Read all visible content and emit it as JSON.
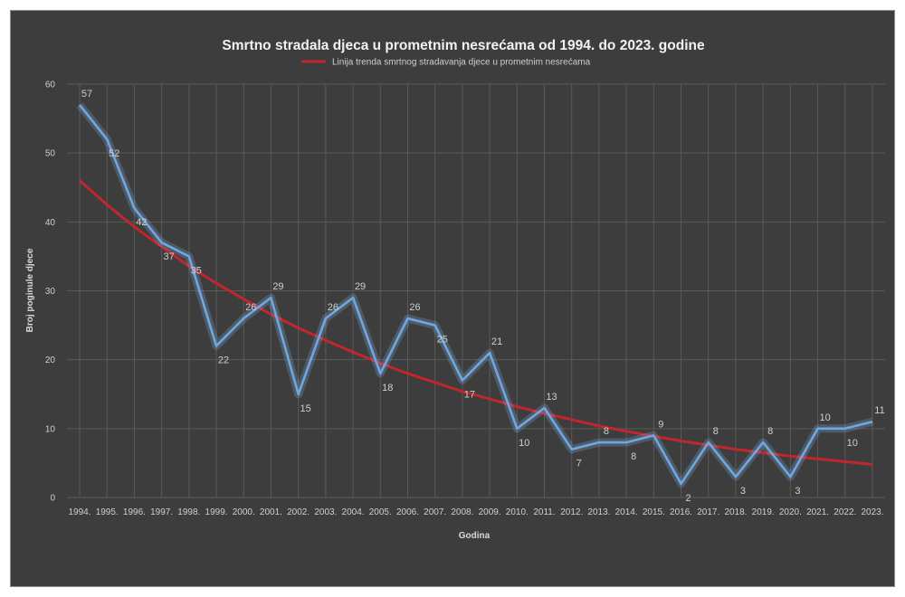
{
  "chart_data": {
    "type": "line",
    "title": "Smrtno stradala djeca u prometnim nesrećama od 1994. do 2023. godine",
    "xlabel": "Godina",
    "ylabel": "Broj poginule djece",
    "ylim": [
      0,
      60
    ],
    "yticks": [
      0,
      10,
      20,
      30,
      40,
      50,
      60
    ],
    "grid": true,
    "legend_position": "top",
    "categories": [
      "1994.",
      "1995.",
      "1996.",
      "1997.",
      "1998.",
      "1999.",
      "2000.",
      "2001.",
      "2002.",
      "2003.",
      "2004.",
      "2005.",
      "2006.",
      "2007.",
      "2008.",
      "2009.",
      "2010.",
      "2011.",
      "2012.",
      "2013.",
      "2014.",
      "2015.",
      "2016.",
      "2017.",
      "2018.",
      "2019.",
      "2020.",
      "2021.",
      "2022.",
      "2023."
    ],
    "series": [
      {
        "values": [
          57,
          52,
          42,
          37,
          35,
          22,
          26,
          29,
          15,
          26,
          29,
          18,
          26,
          25,
          17,
          21,
          10,
          13,
          7,
          8,
          8,
          9,
          2,
          8,
          3,
          8,
          3,
          10,
          10,
          11
        ],
        "color": "#6fa8e0",
        "data_labels": true
      },
      {
        "name": "Linija trenda smrtnog stradavanja djece u prometnim nesrećama",
        "trend": "exponential",
        "values": [
          46.0,
          42.5,
          39.3,
          36.4,
          33.6,
          31.1,
          28.8,
          26.6,
          24.6,
          22.8,
          21.1,
          19.5,
          18.0,
          16.7,
          15.4,
          14.3,
          13.2,
          12.2,
          11.3,
          10.4,
          9.6,
          8.9,
          8.2,
          7.6,
          7.0,
          6.5,
          6.0,
          5.6,
          5.2,
          4.8
        ],
        "color": "#c0272d"
      }
    ]
  }
}
